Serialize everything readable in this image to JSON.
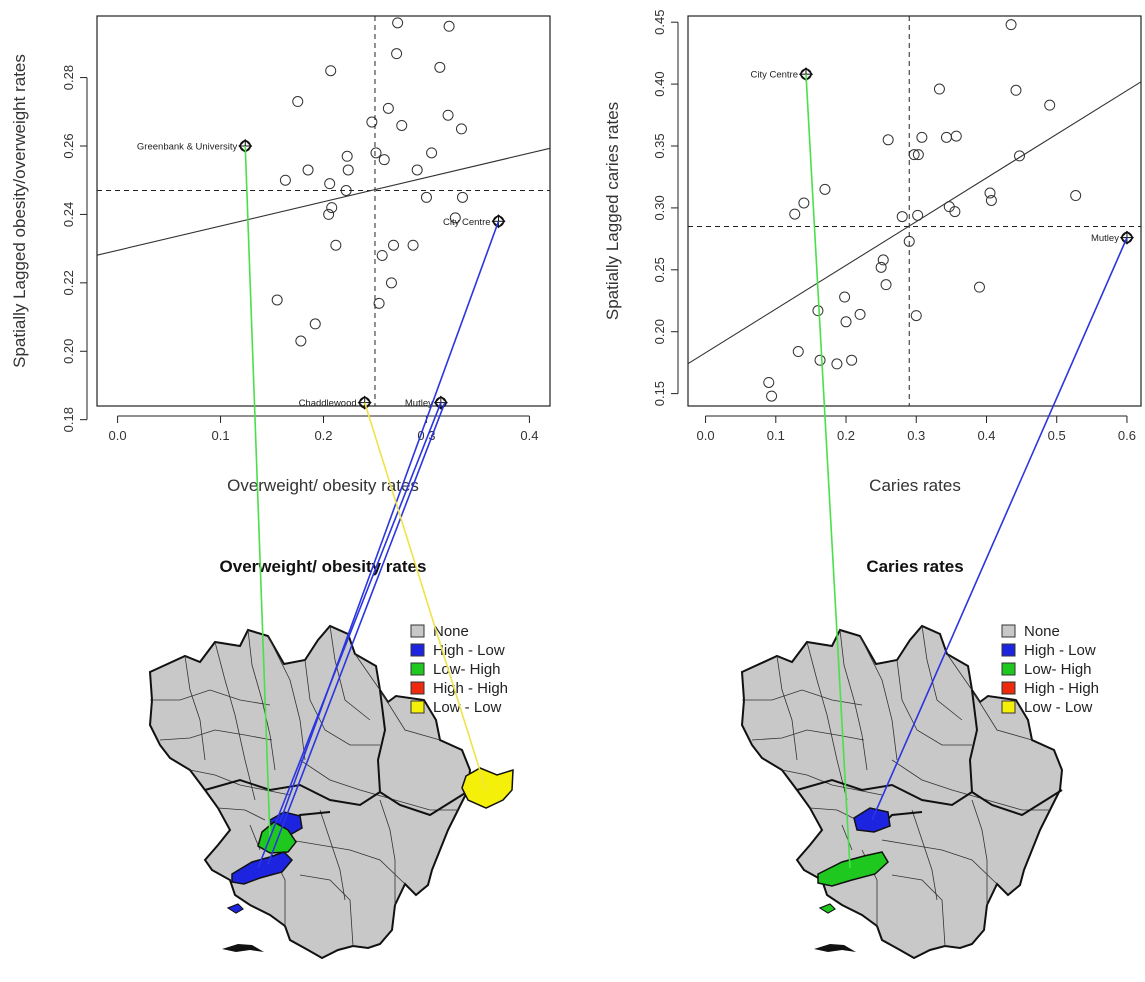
{
  "colors": {
    "none": "#c8c8c8",
    "high_low": "#1c24e0",
    "low_high": "#1ec81e",
    "high_high": "#ee2a0e",
    "low_low": "#f5f00a",
    "link_green": "#49e049",
    "link_blue": "#2b35e0",
    "link_yellow": "#f0e34a"
  },
  "chart_data": [
    {
      "id": "obesity",
      "type": "scatter",
      "xlabel": "Overweight/ obesity rates",
      "ylabel": "Spatially Lagged obesity/overweight rates",
      "xlim": [
        -0.02,
        0.42
      ],
      "ylim": [
        0.184,
        0.298
      ],
      "xticks": [
        "0.0",
        "0.1",
        "0.2",
        "0.3",
        "0.4"
      ],
      "yticks": [
        "0.18",
        "0.20",
        "0.22",
        "0.24",
        "0.26",
        "0.28"
      ],
      "mean_x": 0.25,
      "mean_y": 0.247,
      "regression": {
        "intercept": 0.2295,
        "slope": 0.071
      },
      "points": [
        [
          0.155,
          0.215
        ],
        [
          0.163,
          0.25
        ],
        [
          0.175,
          0.273
        ],
        [
          0.178,
          0.203
        ],
        [
          0.185,
          0.253
        ],
        [
          0.192,
          0.208
        ],
        [
          0.205,
          0.24
        ],
        [
          0.206,
          0.249
        ],
        [
          0.207,
          0.282
        ],
        [
          0.208,
          0.242
        ],
        [
          0.212,
          0.231
        ],
        [
          0.222,
          0.247
        ],
        [
          0.223,
          0.257
        ],
        [
          0.224,
          0.253
        ],
        [
          0.247,
          0.267
        ],
        [
          0.251,
          0.258
        ],
        [
          0.254,
          0.214
        ],
        [
          0.257,
          0.228
        ],
        [
          0.259,
          0.256
        ],
        [
          0.263,
          0.271
        ],
        [
          0.266,
          0.22
        ],
        [
          0.268,
          0.231
        ],
        [
          0.271,
          0.287
        ],
        [
          0.272,
          0.296
        ],
        [
          0.276,
          0.266
        ],
        [
          0.287,
          0.231
        ],
        [
          0.291,
          0.253
        ],
        [
          0.3,
          0.245
        ],
        [
          0.305,
          0.258
        ],
        [
          0.313,
          0.283
        ],
        [
          0.321,
          0.269
        ],
        [
          0.322,
          0.295
        ],
        [
          0.328,
          0.239
        ],
        [
          0.334,
          0.265
        ],
        [
          0.335,
          0.245
        ]
      ],
      "highlighted": [
        {
          "label": "Greenbank & University",
          "x": 0.124,
          "y": 0.26,
          "label_side": "left"
        },
        {
          "label": "City Centre",
          "x": 0.37,
          "y": 0.238,
          "label_side": "left"
        },
        {
          "label": "Chaddlewood",
          "x": 0.24,
          "y": 0.185,
          "label_side": "left"
        },
        {
          "label": "Mutley",
          "x": 0.314,
          "y": 0.185,
          "label_side": "left"
        }
      ]
    },
    {
      "id": "caries",
      "type": "scatter",
      "xlabel": "Caries rates",
      "ylabel": "Spatially Lagged caries rates",
      "xlim": [
        -0.025,
        0.62
      ],
      "ylim": [
        0.14,
        0.455
      ],
      "xticks": [
        "0.0",
        "0.1",
        "0.2",
        "0.3",
        "0.4",
        "0.5",
        "0.6"
      ],
      "yticks": [
        "0.15",
        "0.20",
        "0.25",
        "0.30",
        "0.35",
        "0.40",
        "0.45"
      ],
      "mean_x": 0.29,
      "mean_y": 0.285,
      "regression": {
        "intercept": 0.183,
        "slope": 0.353
      },
      "points": [
        [
          0.09,
          0.159
        ],
        [
          0.094,
          0.148
        ],
        [
          0.127,
          0.295
        ],
        [
          0.132,
          0.184
        ],
        [
          0.14,
          0.304
        ],
        [
          0.16,
          0.217
        ],
        [
          0.163,
          0.177
        ],
        [
          0.17,
          0.315
        ],
        [
          0.187,
          0.174
        ],
        [
          0.198,
          0.228
        ],
        [
          0.2,
          0.208
        ],
        [
          0.208,
          0.177
        ],
        [
          0.22,
          0.214
        ],
        [
          0.25,
          0.252
        ],
        [
          0.253,
          0.258
        ],
        [
          0.257,
          0.238
        ],
        [
          0.26,
          0.355
        ],
        [
          0.28,
          0.293
        ],
        [
          0.29,
          0.273
        ],
        [
          0.297,
          0.343
        ],
        [
          0.3,
          0.213
        ],
        [
          0.302,
          0.294
        ],
        [
          0.303,
          0.343
        ],
        [
          0.308,
          0.357
        ],
        [
          0.333,
          0.396
        ],
        [
          0.343,
          0.357
        ],
        [
          0.347,
          0.301
        ],
        [
          0.355,
          0.297
        ],
        [
          0.357,
          0.358
        ],
        [
          0.39,
          0.236
        ],
        [
          0.405,
          0.312
        ],
        [
          0.407,
          0.306
        ],
        [
          0.435,
          0.448
        ],
        [
          0.442,
          0.395
        ],
        [
          0.447,
          0.342
        ],
        [
          0.49,
          0.383
        ],
        [
          0.527,
          0.31
        ]
      ],
      "highlighted": [
        {
          "label": "City Centre",
          "x": 0.143,
          "y": 0.408,
          "label_side": "left"
        },
        {
          "label": "Mutley",
          "x": 0.6,
          "y": 0.276,
          "label_side": "left"
        }
      ]
    }
  ],
  "maps": [
    {
      "id": "obesity-map",
      "title": "Overweight/ obesity rates",
      "legend": [
        "None",
        "High - Low",
        "Low- High",
        "High - High",
        "Low - Low"
      ]
    },
    {
      "id": "caries-map",
      "title": "Caries rates",
      "legend": [
        "None",
        "High - Low",
        "Low- High",
        "High - High",
        "Low - Low"
      ]
    }
  ]
}
